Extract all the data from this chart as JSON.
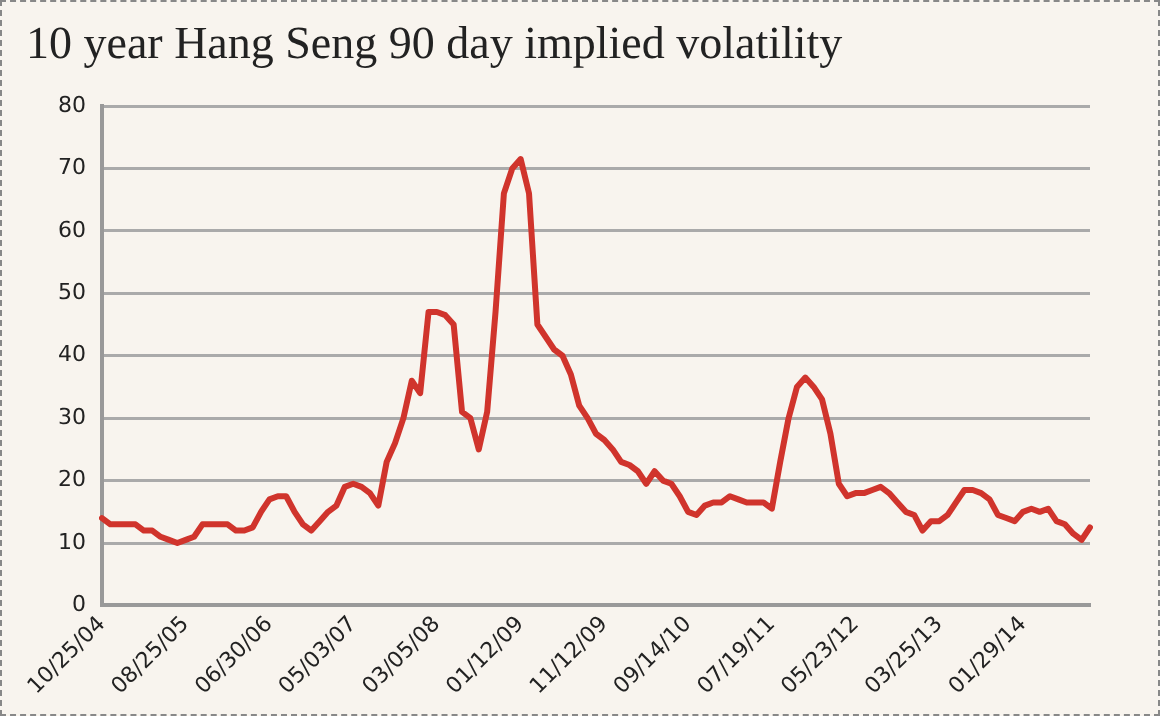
{
  "chart_data": {
    "type": "line",
    "title": "10 year Hang Seng 90 day implied volatility",
    "categories": [
      "10/25/04",
      null,
      null,
      null,
      null,
      null,
      null,
      null,
      null,
      null,
      "08/25/05",
      null,
      null,
      null,
      null,
      null,
      null,
      null,
      null,
      null,
      "06/30/06",
      null,
      null,
      null,
      null,
      null,
      null,
      null,
      null,
      null,
      "05/03/07",
      null,
      null,
      null,
      null,
      null,
      null,
      null,
      null,
      null,
      "03/05/08",
      null,
      null,
      null,
      null,
      null,
      null,
      null,
      null,
      null,
      "01/12/09",
      null,
      null,
      null,
      null,
      null,
      null,
      null,
      null,
      null,
      "11/12/09",
      null,
      null,
      null,
      null,
      null,
      null,
      null,
      null,
      null,
      "09/14/10",
      null,
      null,
      null,
      null,
      null,
      null,
      null,
      null,
      null,
      "07/19/11",
      null,
      null,
      null,
      null,
      null,
      null,
      null,
      null,
      null,
      "05/23/12",
      null,
      null,
      null,
      null,
      null,
      null,
      null,
      null,
      null,
      "03/25/13",
      null,
      null,
      null,
      null,
      null,
      null,
      null,
      null,
      null,
      "01/29/14",
      null,
      null,
      null,
      null,
      null,
      null,
      null,
      null
    ],
    "series": [
      {
        "color": "#d0342c",
        "values": [
          14,
          13,
          13,
          13,
          13,
          12,
          12,
          11,
          10.5,
          10,
          10.5,
          11,
          13,
          13,
          13,
          13,
          12,
          12,
          12.5,
          15,
          17,
          17.5,
          17.5,
          15,
          13,
          12,
          13.5,
          15,
          16,
          19,
          19.5,
          19,
          18,
          16,
          23,
          26,
          30,
          36,
          34,
          47,
          47,
          46.5,
          45,
          31,
          30,
          25,
          31,
          47,
          66,
          70,
          71.5,
          66,
          45,
          43,
          41,
          40,
          37,
          32,
          30,
          27.5,
          26.5,
          25,
          23,
          22.5,
          21.5,
          19.5,
          21.5,
          20,
          19.5,
          17.5,
          15,
          14.5,
          16,
          16.5,
          16.5,
          17.5,
          17,
          16.5,
          16.5,
          16.5,
          15.5,
          23,
          30,
          35,
          36.5,
          35,
          33,
          27.5,
          19.5,
          17.5,
          18,
          18,
          18.5,
          19,
          18,
          16.5,
          15,
          14.5,
          12,
          13.5,
          13.5,
          14.5,
          16.5,
          18.5,
          18.5,
          18,
          17,
          14.5,
          14,
          13.5,
          15,
          15.5,
          15,
          15.5,
          13.5,
          13,
          11.5,
          10.5,
          12.5
        ]
      }
    ],
    "ylim": [
      0,
      80
    ],
    "yticks": [
      0,
      10,
      20,
      30,
      40,
      50,
      60,
      70,
      80
    ],
    "grid": "y",
    "legend": false,
    "marker": "none",
    "line_style": "solid"
  }
}
